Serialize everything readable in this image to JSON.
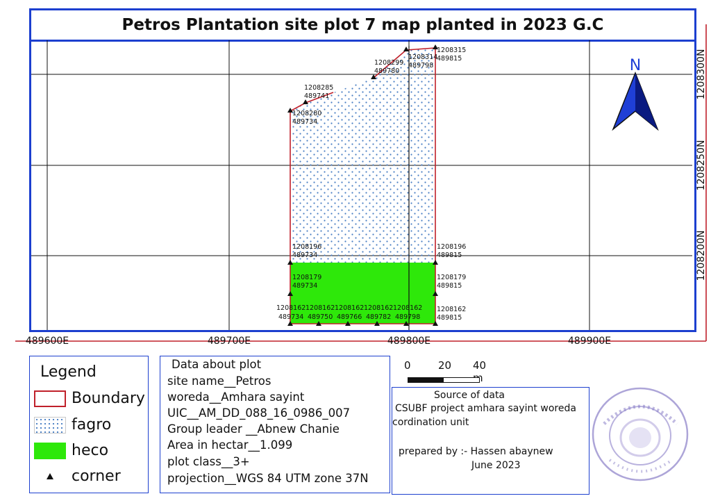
{
  "title": "Petros Plantation site plot 7 map planted in 2023 G.C",
  "map": {
    "x_axis_labels": [
      "489600E",
      "489700E",
      "489800E",
      "489900E"
    ],
    "y_axis_labels": [
      "1208300N",
      "1208250N",
      "1208200N"
    ],
    "north_arrow_label": "N",
    "corner_points": [
      {
        "n": "1208315",
        "e": "489815"
      },
      {
        "n": "1208314",
        "e": "489798"
      },
      {
        "n": "1208299",
        "e": "489780"
      },
      {
        "n": "1208285",
        "e": "489741"
      },
      {
        "n": "1208280",
        "e": "489734"
      },
      {
        "n": "1208196",
        "e": "489734"
      },
      {
        "n": "1208196",
        "e": "489815"
      },
      {
        "n": "1208179",
        "e": "489734"
      },
      {
        "n": "1208179",
        "e": "489815"
      },
      {
        "n": "1208162",
        "e": "489734"
      },
      {
        "n": "1208162",
        "e": "489750"
      },
      {
        "n": "1208162",
        "e": "489766"
      },
      {
        "n": "1208162",
        "e": "489782"
      },
      {
        "n": "1208162",
        "e": "489798"
      },
      {
        "n": "1208162",
        "e": "489815"
      }
    ],
    "zones": [
      {
        "name": "fagro",
        "color": "#4a7fc4"
      },
      {
        "name": "heco",
        "color": "#2ee80a"
      }
    ],
    "boundary_color": "#c0202a",
    "frame_color": "#1c3fcf"
  },
  "legend": {
    "title": "Legend",
    "items": [
      {
        "label": "Boundary"
      },
      {
        "label": "fagro"
      },
      {
        "label": "heco"
      },
      {
        "label": "corner"
      }
    ]
  },
  "plot_info": {
    "title": "Data about plot",
    "lines": [
      "site name__Petros",
      "woreda__Amhara sayint",
      "UIC__AM_DD_088_16_0986_007",
      "Group leader __Abnew Chanie",
      "Area in hectar__1.099",
      "plot class__3+",
      "projection__WGS 84 UTM zone 37N"
    ]
  },
  "scale_bar": {
    "labels": [
      "0",
      "20",
      "40 m"
    ]
  },
  "source": {
    "title": "Source of data",
    "line1": "CSUBF project amhara sayint woreda",
    "line2": "cordination unit",
    "prepared": "prepared by :- Hassen abaynew",
    "date": "June 2023"
  }
}
